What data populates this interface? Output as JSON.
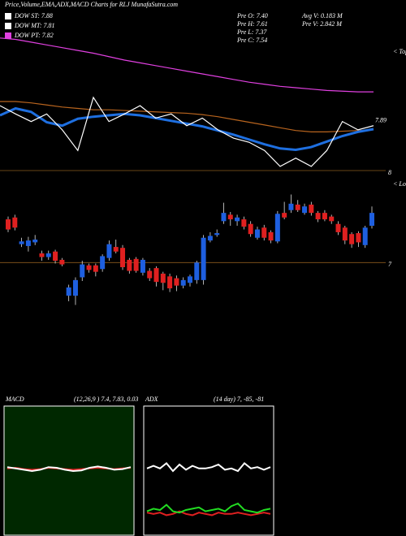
{
  "header": {
    "title": "Price,Volume,EMA,ADX,MACD Charts for RLJ MunafaSutra.com"
  },
  "legend": [
    {
      "label": "DOW ST: 7.88",
      "color": "#ffffff"
    },
    {
      "label": "DOW MT: 7.81",
      "color": "#ffffff"
    },
    {
      "label": "DOW PT: 7.82",
      "color": "#e040e0"
    }
  ],
  "stats": [
    "Pre   O: 7.40",
    "Pre   H: 7.61",
    "Pre   L: 7.37",
    "Pre   C: 7.54",
    "Avg V: 0.183 M",
    "Pre   V: 2.842 M"
  ],
  "chart_data": [
    {
      "type": "line",
      "annotation": "< Tops",
      "end_label": "7.89",
      "ylim": [
        7.3,
        9.3
      ],
      "series": [
        {
          "color": "#e040e0",
          "values": [
            9.22,
            9.2,
            9.16,
            9.12,
            9.08,
            9.04,
            9.0,
            8.95,
            8.9,
            8.86,
            8.82,
            8.78,
            8.74,
            8.7,
            8.66,
            8.62,
            8.58,
            8.55,
            8.52,
            8.5,
            8.48,
            8.46,
            8.45,
            8.44,
            8.44
          ]
        },
        {
          "color": "#b8641e",
          "values": [
            8.3,
            8.3,
            8.28,
            8.25,
            8.22,
            8.2,
            8.18,
            8.18,
            8.17,
            8.16,
            8.15,
            8.14,
            8.13,
            8.11,
            8.08,
            8.04,
            8.0,
            7.96,
            7.92,
            7.88,
            7.86,
            7.86,
            7.87,
            7.88,
            7.89
          ]
        },
        {
          "color": "#1e6fe0",
          "values": [
            8.1,
            8.2,
            8.15,
            8.0,
            7.95,
            8.05,
            8.08,
            8.1,
            8.12,
            8.1,
            8.06,
            8.02,
            7.98,
            7.94,
            7.88,
            7.82,
            7.75,
            7.68,
            7.62,
            7.6,
            7.64,
            7.72,
            7.8,
            7.86,
            7.9
          ]
        },
        {
          "color": "#ffffff",
          "values": [
            8.24,
            8.12,
            8.01,
            8.12,
            7.89,
            7.59,
            8.36,
            8.01,
            8.12,
            8.24,
            8.06,
            8.12,
            7.95,
            8.06,
            7.89,
            7.77,
            7.71,
            7.59,
            7.36,
            7.48,
            7.36,
            7.59,
            8.01,
            7.89,
            7.95
          ]
        }
      ]
    },
    {
      "type": "candlestick",
      "annotation": "< Lows",
      "ylim": [
        6.5,
        8.0
      ],
      "yticks": [
        7,
        8
      ],
      "up_color": "#1e5fe0",
      "down_color": "#e02020",
      "open": [
        7.47,
        7.49,
        7.2,
        7.18,
        7.22,
        7.1,
        7.06,
        7.12,
        7.03,
        6.64,
        6.64,
        6.84,
        6.97,
        6.97,
        6.93,
        7.05,
        7.17,
        7.16,
        7.03,
        7.04,
        6.89,
        6.91,
        6.94,
        6.88,
        6.85,
        6.83,
        6.75,
        6.78,
        6.81,
        6.81,
        7.24,
        7.3,
        7.45,
        7.52,
        7.45,
        7.47,
        7.42,
        7.27,
        7.38,
        7.33,
        7.23,
        7.54,
        7.57,
        7.63,
        7.54,
        7.63,
        7.54,
        7.54,
        7.5,
        7.42,
        7.38,
        7.31,
        7.32,
        7.19,
        7.4
      ],
      "high": [
        7.5,
        7.52,
        7.27,
        7.28,
        7.3,
        7.13,
        7.13,
        7.14,
        7.05,
        6.76,
        6.84,
        7.02,
        6.99,
        6.99,
        7.09,
        7.24,
        7.25,
        7.19,
        7.05,
        7.06,
        7.05,
        6.94,
        6.96,
        6.9,
        6.88,
        6.86,
        6.84,
        6.87,
        7.02,
        7.3,
        7.33,
        7.36,
        7.65,
        7.55,
        7.52,
        7.5,
        7.45,
        7.39,
        7.41,
        7.35,
        7.56,
        7.66,
        7.74,
        7.68,
        7.64,
        7.66,
        7.56,
        7.57,
        7.52,
        7.45,
        7.4,
        7.33,
        7.34,
        7.4,
        7.61
      ],
      "low": [
        7.33,
        7.35,
        7.17,
        7.12,
        7.19,
        7.02,
        7.03,
        6.99,
        6.96,
        6.58,
        6.54,
        6.8,
        6.89,
        6.85,
        6.9,
        7.02,
        7.1,
        6.92,
        6.88,
        6.89,
        6.86,
        6.8,
        6.74,
        6.7,
        6.68,
        6.69,
        6.72,
        6.74,
        6.77,
        6.76,
        7.22,
        7.28,
        7.42,
        7.4,
        7.4,
        7.36,
        7.28,
        7.25,
        7.24,
        7.21,
        7.21,
        7.47,
        7.54,
        7.55,
        7.52,
        7.51,
        7.44,
        7.45,
        7.42,
        7.3,
        7.2,
        7.16,
        7.17,
        7.16,
        7.37
      ],
      "close": [
        7.36,
        7.38,
        7.23,
        7.24,
        7.25,
        7.06,
        7.1,
        7.02,
        6.98,
        6.73,
        6.81,
        6.98,
        6.92,
        6.9,
        7.07,
        7.2,
        7.12,
        6.95,
        6.91,
        6.91,
        7.03,
        6.83,
        6.79,
        6.78,
        6.72,
        6.75,
        6.81,
        6.85,
        7.0,
        7.27,
        7.29,
        7.32,
        7.54,
        7.47,
        7.49,
        7.39,
        7.31,
        7.36,
        7.27,
        7.24,
        7.53,
        7.49,
        7.64,
        7.57,
        7.61,
        7.54,
        7.47,
        7.47,
        7.45,
        7.33,
        7.24,
        7.2,
        7.22,
        7.38,
        7.54
      ]
    },
    {
      "type": "line",
      "title": "MACD",
      "subtitle": "(12,26,9 ) 7.4, 7.83, 0.03",
      "background": "#002800",
      "ylim": [
        -1,
        1
      ],
      "series": [
        {
          "color": "#e02020",
          "values": [
            0.04,
            0.05,
            0.03,
            0.02,
            0.03,
            0.05,
            0.04,
            0.03,
            0.02,
            0.03,
            0.04,
            0.05,
            0.04,
            0.03,
            0.04,
            0.05
          ]
        },
        {
          "color": "#ffffff",
          "values": [
            0.06,
            0.04,
            0.02,
            0.0,
            0.02,
            0.06,
            0.05,
            0.02,
            0.0,
            0.01,
            0.05,
            0.07,
            0.05,
            0.02,
            0.03,
            0.06
          ]
        }
      ]
    },
    {
      "type": "line",
      "title": "ADX",
      "subtitle": "(14 day) 7, -85, -81",
      "background": "#000000",
      "ylim": [
        0,
        100
      ],
      "series": [
        {
          "color": "#e02020",
          "values": [
            18,
            17,
            18,
            16,
            17,
            19,
            17,
            16,
            18,
            17,
            16,
            18,
            17,
            17,
            18,
            17,
            16,
            17,
            18,
            17
          ]
        },
        {
          "color": "#22dd22",
          "values": [
            19,
            21,
            20,
            24,
            19,
            18,
            20,
            21,
            22,
            19,
            20,
            21,
            19,
            23,
            25,
            20,
            19,
            18,
            20,
            21
          ]
        },
        {
          "color": "#ffffff",
          "values": [
            52,
            54,
            52,
            56,
            50,
            55,
            51,
            54,
            52,
            52,
            53,
            55,
            51,
            52,
            50,
            56,
            52,
            53,
            51,
            53
          ]
        }
      ]
    }
  ]
}
